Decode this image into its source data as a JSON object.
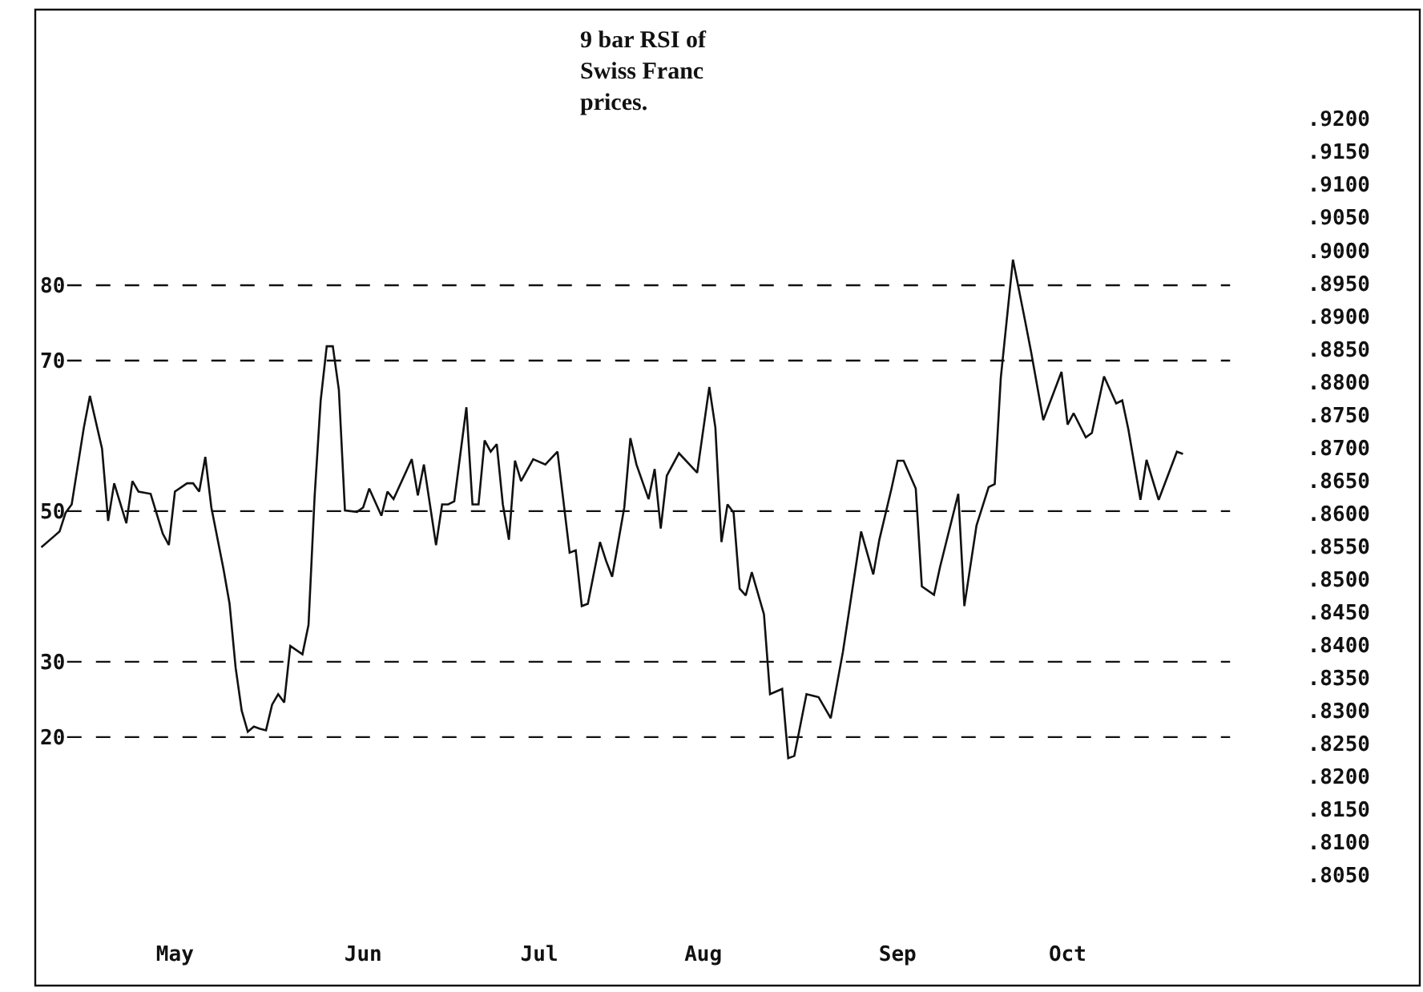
{
  "chart_data": {
    "type": "line",
    "title": "9 bar RSI of\nSwiss Franc\nprices.",
    "x": [
      "--04-26",
      "--04-28",
      "--04-29",
      "--04-30",
      "--05-01",
      "--05-03",
      "--05-04",
      "--05-06",
      "--05-07",
      "--05-08",
      "--05-10",
      "--05-11",
      "--05-12",
      "--05-14",
      "--05-16",
      "--05-17",
      "--05-18",
      "--05-20",
      "--05-21",
      "--05-22",
      "--05-23",
      "--05-24",
      "--05-26",
      "--05-27",
      "--05-28",
      "--05-29",
      "--05-30",
      "--05-31",
      "--06-01",
      "--06-02",
      "--06-03",
      "--06-04",
      "--06-05",
      "--06-06",
      "--06-08",
      "--06-09",
      "--06-10",
      "--06-11",
      "--06-12",
      "--06-13",
      "--06-14",
      "--06-15",
      "--06-17",
      "--06-18",
      "--06-19",
      "--06-21",
      "--06-22",
      "--06-23",
      "--06-26",
      "--06-27",
      "--06-28",
      "--06-30",
      "--07-01",
      "--07-02",
      "--07-03",
      "--07-05",
      "--07-06",
      "--07-07",
      "--07-08",
      "--07-09",
      "--07-10",
      "--07-11",
      "--07-12",
      "--07-13",
      "--07-14",
      "--07-16",
      "--07-18",
      "--07-20",
      "--07-21",
      "--07-22",
      "--07-23",
      "--07-24",
      "--07-25",
      "--07-27",
      "--07-28",
      "--07-29",
      "--07-31",
      "--08-01",
      "--08-02",
      "--08-04",
      "--08-05",
      "--08-06",
      "--08-07",
      "--08-09",
      "--08-12",
      "--08-13",
      "--08-14",
      "--08-15",
      "--08-16",
      "--08-17",
      "--08-18",
      "--08-19",
      "--08-20",
      "--08-21",
      "--08-23",
      "--08-24",
      "--08-26",
      "--08-27",
      "--08-28",
      "--08-30",
      "--09-01",
      "--09-03",
      "--09-05",
      "--09-08",
      "--09-10",
      "--09-11",
      "--09-13",
      "--09-14",
      "--09-15",
      "--09-17",
      "--09-18",
      "--09-20",
      "--09-21",
      "--09-24",
      "--09-25",
      "--09-27",
      "--09-29",
      "--09-30",
      "--10-01",
      "--10-03",
      "--10-05",
      "--10-06",
      "--10-08",
      "--10-11",
      "--10-12",
      "--10-13",
      "--10-15",
      "--10-16",
      "--10-18",
      "--10-20",
      "--10-21",
      "--10-22",
      "--10-24",
      "--10-25",
      "--10-27",
      "--10-30",
      "--10-31"
    ],
    "series": [
      {
        "color": "#111111",
        "values": [
          45.2,
          46.6,
          47.3,
          49.8,
          50.9,
          61.1,
          65.3,
          58.3,
          48.7,
          53.7,
          48.4,
          54.0,
          52.6,
          52.3,
          47.0,
          45.5,
          52.6,
          53.7,
          53.7,
          52.6,
          57.2,
          50.5,
          42.3,
          37.7,
          29.2,
          23.5,
          20.7,
          21.4,
          21.1,
          20.9,
          24.3,
          25.7,
          24.6,
          32.1,
          31.0,
          34.9,
          51.9,
          64.7,
          71.9,
          71.9,
          66.1,
          50.1,
          49.9,
          50.5,
          53.0,
          49.4,
          52.6,
          51.6,
          56.9,
          52.1,
          56.2,
          45.5,
          50.9,
          50.9,
          51.3,
          63.8,
          50.9,
          50.9,
          59.4,
          57.9,
          58.9,
          50.9,
          46.2,
          56.7,
          54.0,
          56.9,
          56.2,
          57.9,
          51.2,
          44.5,
          44.8,
          37.4,
          37.7,
          45.9,
          43.4,
          41.3,
          50.5,
          59.7,
          56.2,
          51.6,
          55.6,
          47.7,
          54.7,
          57.7,
          55.1,
          60.8,
          66.5,
          61.1,
          45.9,
          50.9,
          49.8,
          39.7,
          38.8,
          41.9,
          36.3,
          25.7,
          26.4,
          17.2,
          17.5,
          25.7,
          25.3,
          22.5,
          31.3,
          47.3,
          41.6,
          46.2,
          53.0,
          56.7,
          56.7,
          53.0,
          40.0,
          38.9,
          42.6,
          52.3,
          37.4,
          48.1,
          53.2,
          53.6,
          67.7,
          83.4,
          75.3,
          71.1,
          62.1,
          68.5,
          61.5,
          63.0,
          59.8,
          60.4,
          67.9,
          64.3,
          64.7,
          60.9,
          51.5,
          56.8,
          51.5,
          57.9,
          57.6
        ]
      }
    ],
    "xlim": [
      "--04-25",
      "--12-09"
    ],
    "xticks": [
      {
        "value": "--05-18",
        "label": "May"
      },
      {
        "value": "--06-18",
        "label": "Jun"
      },
      {
        "value": "--07-17",
        "label": "Jul"
      },
      {
        "value": "--08-13",
        "label": "Aug"
      },
      {
        "value": "--09-14",
        "label": "Sep"
      },
      {
        "value": "--10-12",
        "label": "Oct"
      }
    ],
    "ylim": [
      -13,
      116.6
    ],
    "yticks": [
      20,
      30,
      50,
      70,
      80
    ],
    "y2lim": [
      0.7882,
      0.9366
    ],
    "y2ticks": [
      {
        "value": 0.92,
        "label": ".9200"
      },
      {
        "value": 0.915,
        "label": ".9150"
      },
      {
        "value": 0.91,
        "label": ".9100"
      },
      {
        "value": 0.905,
        "label": ".9050"
      },
      {
        "value": 0.9,
        "label": ".9000"
      },
      {
        "value": 0.895,
        "label": ".8950"
      },
      {
        "value": 0.89,
        "label": ".8900"
      },
      {
        "value": 0.885,
        "label": ".8850"
      },
      {
        "value": 0.88,
        "label": ".8800"
      },
      {
        "value": 0.875,
        "label": ".8750"
      },
      {
        "value": 0.87,
        "label": ".8700"
      },
      {
        "value": 0.865,
        "label": ".8650"
      },
      {
        "value": 0.86,
        "label": ".8600"
      },
      {
        "value": 0.855,
        "label": ".8550"
      },
      {
        "value": 0.85,
        "label": ".8500"
      },
      {
        "value": 0.845,
        "label": ".8450"
      },
      {
        "value": 0.84,
        "label": ".8400"
      },
      {
        "value": 0.835,
        "label": ".8350"
      },
      {
        "value": 0.83,
        "label": ".8300"
      },
      {
        "value": 0.825,
        "label": ".8250"
      },
      {
        "value": 0.82,
        "label": ".8200"
      },
      {
        "value": 0.815,
        "label": ".8150"
      },
      {
        "value": 0.81,
        "label": ".8100"
      },
      {
        "value": 0.805,
        "label": ".8050"
      }
    ],
    "ref_lines": [
      {
        "axis": "y",
        "value": 80,
        "line_style": "dashed"
      },
      {
        "axis": "y",
        "value": 70,
        "line_style": "dashed"
      },
      {
        "axis": "y",
        "value": 50,
        "line_style": "dashed"
      },
      {
        "axis": "y",
        "value": 30,
        "line_style": "dashed"
      },
      {
        "axis": "y",
        "value": 20,
        "line_style": "dashed"
      }
    ]
  }
}
